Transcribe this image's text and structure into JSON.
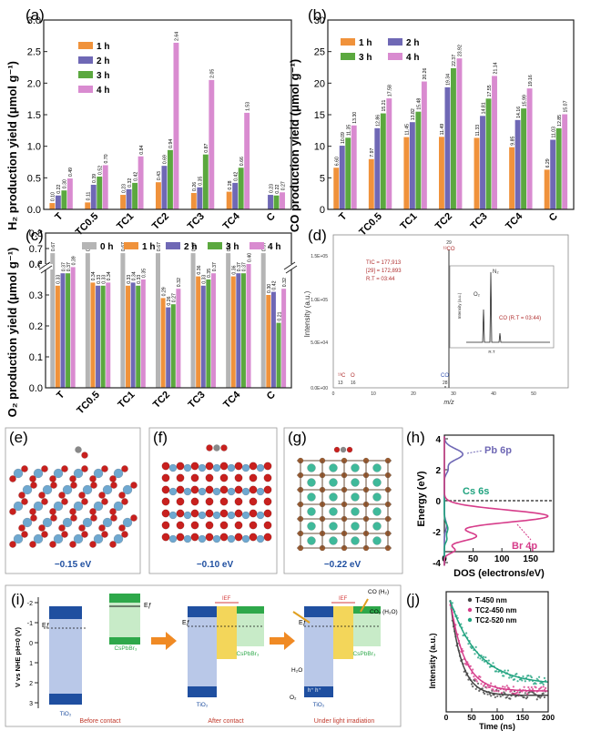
{
  "colors": {
    "h1": "#F0923B",
    "h2": "#6F68B5",
    "h3": "#5BA83F",
    "h4": "#D98BD0",
    "h0": "#B5B5B5",
    "blue": "#1f4fa0",
    "pink": "#d63c8a",
    "teal": "#20a37f",
    "dark": "#333333"
  },
  "panel_labels": {
    "a": "(a)",
    "b": "(b)",
    "c": "(c)",
    "d": "(d)",
    "e": "(e)",
    "f": "(f)",
    "g": "(g)",
    "h": "(h)",
    "i": "(i)",
    "j": "(j)"
  },
  "chart_data": [
    {
      "id": "a",
      "type": "bar",
      "ylabel": "H₂ production yield (μmol g⁻¹)",
      "categories": [
        "T",
        "TC0.5",
        "TC1",
        "TC2",
        "TC3",
        "TC4",
        "C"
      ],
      "ylim": [
        0,
        3.0
      ],
      "series": [
        {
          "name": "1 h",
          "values": [
            0.1,
            0.11,
            0.23,
            0.43,
            0.26,
            0.28,
            0.0
          ]
        },
        {
          "name": "2 h",
          "values": [
            0.22,
            0.39,
            0.32,
            0.69,
            0.35,
            0.42,
            0.23
          ]
        },
        {
          "name": "3 h",
          "values": [
            0.3,
            0.52,
            0.42,
            0.94,
            0.87,
            0.66,
            0.22
          ]
        },
        {
          "name": "4 h",
          "values": [
            0.49,
            0.7,
            0.84,
            2.64,
            2.05,
            1.53,
            0.27
          ]
        }
      ],
      "value_labels": [
        [
          "0.10",
          "0.11",
          "0.23",
          "0.43",
          "0.26",
          "0.28",
          ""
        ],
        [
          "0.22",
          "0.39",
          "0.32",
          "0.69",
          "0.35",
          "0.42",
          "0.23"
        ],
        [
          "0.30",
          "0.52",
          "0.42",
          "0.94",
          "0.87",
          "0.66",
          "0.22"
        ],
        [
          "0.49",
          "0.70",
          "0.84",
          "2.64",
          "2.05",
          "1.53",
          "0.27"
        ]
      ]
    },
    {
      "id": "b",
      "type": "bar",
      "ylabel": "CO production yield (μmol g⁻¹)",
      "categories": [
        "T",
        "TC0.5",
        "TC1",
        "TC2",
        "TC3",
        "TC4",
        "C"
      ],
      "ylim": [
        0,
        30
      ],
      "series": [
        {
          "name": "1 h",
          "values": [
            6.6,
            7.97,
            11.45,
            11.49,
            11.33,
            9.85,
            6.29
          ]
        },
        {
          "name": "2 h",
          "values": [
            10.09,
            12.86,
            13.82,
            19.34,
            14.81,
            14.16,
            11.03
          ]
        },
        {
          "name": "3 h",
          "values": [
            11.35,
            15.21,
            15.48,
            22.37,
            17.55,
            15.99,
            12.85
          ]
        },
        {
          "name": "4 h",
          "values": [
            13.3,
            17.58,
            20.26,
            23.92,
            21.14,
            19.16,
            15.07
          ]
        }
      ],
      "value_labels": [
        [
          "6.60",
          "7.97",
          "11.45",
          "11.49",
          "11.33",
          "9.85",
          "6.29"
        ],
        [
          "10.09",
          "12.86",
          "13.82",
          "19.34",
          "14.81",
          "14.16",
          "11.03"
        ],
        [
          "11.35",
          "15.21",
          "15.48",
          "22.37",
          "17.55",
          "15.99",
          "12.85"
        ],
        [
          "13.30",
          "17.58",
          "20.26",
          "23.92",
          "21.14",
          "19.16",
          "15.07"
        ]
      ]
    },
    {
      "id": "c",
      "type": "bar",
      "ylabel": "O₂ production yield (μmol g⁻¹)",
      "categories": [
        "T",
        "TC0.5",
        "TC1",
        "TC2",
        "TC3",
        "TC4",
        "C"
      ],
      "ylim": [
        0,
        0.5
      ],
      "yticks_lower": [
        "0.0",
        "0.1",
        "0.2",
        "0.3",
        "0.4"
      ],
      "yticks_upper": [
        "0.6",
        "0.7",
        "0.8"
      ],
      "series": [
        {
          "name": "0 h",
          "values": [
            0.67,
            0.67,
            0.67,
            0.67,
            0.67,
            0.67,
            0.67
          ]
        },
        {
          "name": "1 h",
          "values": [
            0.33,
            0.34,
            0.33,
            0.29,
            0.36,
            0.36,
            0.3
          ]
        },
        {
          "name": "2 h",
          "values": [
            0.37,
            0.33,
            0.34,
            0.26,
            0.33,
            0.37,
            0.42
          ]
        },
        {
          "name": "3 h",
          "values": [
            0.37,
            0.33,
            0.33,
            0.27,
            0.35,
            0.37,
            0.21
          ]
        },
        {
          "name": "4 h",
          "values": [
            0.39,
            0.34,
            0.35,
            0.32,
            0.37,
            0.4,
            0.32
          ]
        }
      ],
      "value_labels": [
        [
          "0.67",
          "0.67",
          "0.67",
          "0.67",
          "0.67",
          "0.67",
          "0.67"
        ],
        [
          "0.33",
          "0.34",
          "0.33",
          "0.29",
          "0.36",
          "0.36",
          "0.30"
        ],
        [
          "0.37",
          "0.33",
          "0.34",
          "0.26",
          "0.33",
          "0.37",
          "0.42"
        ],
        [
          "0.37",
          "0.33",
          "0.33",
          "0.27",
          "0.35",
          "0.37",
          "0.21"
        ],
        [
          "0.39",
          "0.34",
          "0.35",
          "0.32",
          "0.37",
          "0.40",
          "0.32"
        ]
      ]
    },
    {
      "id": "j",
      "type": "scatter",
      "xlabel": "Time (ns)",
      "ylabel": "Intensity (a.u.)",
      "xlim": [
        0,
        200
      ],
      "xticks": [
        "0",
        "50",
        "100",
        "150",
        "200"
      ],
      "series": [
        {
          "name": "T-450 nm",
          "tau": 22,
          "base": 0.12
        },
        {
          "name": "TC2-450 nm",
          "tau": 28,
          "base": 0.16
        },
        {
          "name": "TC2-520 nm",
          "tau": 55,
          "base": 0.22
        }
      ]
    }
  ],
  "panel_d": {
    "ylabel": "Intensity (a.u.)",
    "xlabel": "m/z",
    "yticks": [
      "1.5E+05",
      "1.0E+05",
      "5.0E+04",
      "0.0E+00"
    ],
    "xticks": [
      "0",
      "10",
      "20",
      "30",
      "40",
      "50"
    ],
    "info": [
      "TIC = 177,913",
      "[29] = 172,893",
      "R.T = 03:44"
    ],
    "peaks": [
      {
        "label": "¹³C",
        "mz": "13"
      },
      {
        "label": "O",
        "mz": "16"
      },
      {
        "label": "CO",
        "mz": "28"
      },
      {
        "label": "¹³CO",
        "mz": "29"
      }
    ],
    "inset": {
      "ylabel": "Intensity (a.u.)",
      "xlabel": "R.T",
      "n2": "N₂",
      "o2": "O₂",
      "co": "CO (R.T = 03:44)"
    }
  },
  "energies": {
    "e": "−0.15 eV",
    "f": "−0.10 eV",
    "g": "−0.22 eV"
  },
  "panel_h": {
    "ylabel": "Energy (eV)",
    "xlabel": "DOS (electrons/eV)",
    "yticks": [
      "4",
      "2",
      "0",
      "-2",
      "-4"
    ],
    "xticks": [
      "0",
      "50",
      "100",
      "150"
    ],
    "labels": [
      "Pb 6p",
      "Cs 6s",
      "Br 4p"
    ]
  },
  "panel_i": {
    "ylabel": "V vs NHE pH=0 (V)",
    "yticks": [
      "-2",
      "-1",
      "0",
      "1",
      "2",
      "3"
    ],
    "tio2": "TiO₂",
    "cspbbr3": "CsPbBr₃",
    "ef": "Eƒ",
    "ief": "IEF",
    "captions": [
      "Before contact",
      "After contact",
      "Under light irradiation"
    ],
    "co": "CO (H₂)",
    "co2": "CO₂ (H₂O)",
    "h2o": "H₂O",
    "o2": "O₂",
    "holes": "h⁺ h⁺"
  }
}
